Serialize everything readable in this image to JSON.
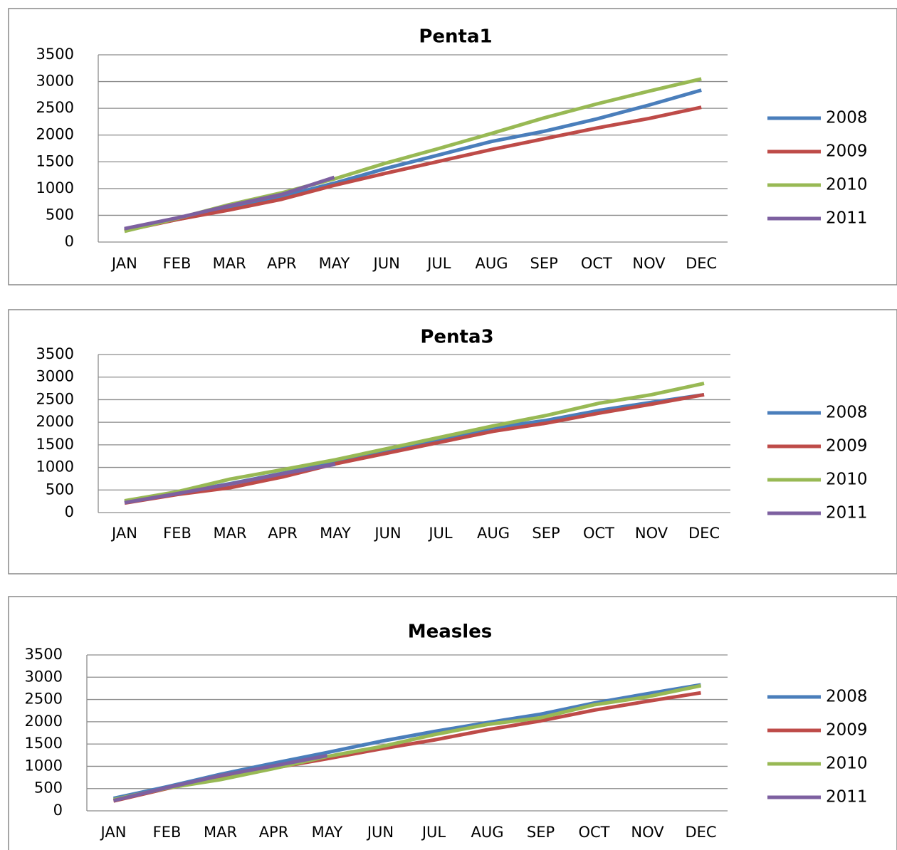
{
  "chart_data": [
    {
      "type": "line",
      "title": "Penta1",
      "categories": [
        "JAN",
        "FEB",
        "MAR",
        "APR",
        "MAY",
        "JUN",
        "JUL",
        "AUG",
        "SEP",
        "OCT",
        "NOV",
        "DEC"
      ],
      "ylim": [
        0,
        3500
      ],
      "yticks": [
        0,
        500,
        1000,
        1500,
        2000,
        2500,
        3000,
        3500
      ],
      "grid": true,
      "series": [
        {
          "name": "2008",
          "color": "#4a7ebb",
          "values": [
            230,
            420,
            620,
            850,
            1100,
            1380,
            1630,
            1880,
            2070,
            2300,
            2560,
            2840
          ]
        },
        {
          "name": "2009",
          "color": "#be4b48",
          "values": [
            210,
            420,
            600,
            800,
            1060,
            1290,
            1510,
            1730,
            1930,
            2130,
            2310,
            2520
          ]
        },
        {
          "name": "2010",
          "color": "#98b954",
          "values": [
            200,
            440,
            700,
            920,
            1180,
            1480,
            1750,
            2030,
            2320,
            2580,
            2820,
            3050
          ]
        },
        {
          "name": "2011",
          "color": "#7d60a0",
          "values": [
            250,
            450,
            680,
            890,
            1210,
            null,
            null,
            null,
            null,
            null,
            null,
            null
          ]
        }
      ]
    },
    {
      "type": "line",
      "title": "Penta3",
      "categories": [
        "JAN",
        "FEB",
        "MAR",
        "APR",
        "MAY",
        "JUN",
        "JUL",
        "AUG",
        "SEP",
        "OCT",
        "NOV",
        "DEC"
      ],
      "ylim": [
        0,
        3500
      ],
      "yticks": [
        0,
        500,
        1000,
        1500,
        2000,
        2500,
        3000,
        3500
      ],
      "grid": true,
      "series": [
        {
          "name": "2008",
          "color": "#4a7ebb",
          "values": [
            240,
            430,
            640,
            870,
            1110,
            1380,
            1620,
            1880,
            2040,
            2260,
            2440,
            2610
          ]
        },
        {
          "name": "2009",
          "color": "#be4b48",
          "values": [
            210,
            400,
            550,
            790,
            1080,
            1320,
            1560,
            1800,
            1980,
            2200,
            2400,
            2610
          ]
        },
        {
          "name": "2010",
          "color": "#98b954",
          "values": [
            260,
            460,
            740,
            950,
            1170,
            1420,
            1670,
            1920,
            2150,
            2420,
            2610,
            2860
          ]
        },
        {
          "name": "2011",
          "color": "#7d60a0",
          "values": [
            220,
            420,
            630,
            860,
            1070,
            null,
            null,
            null,
            null,
            null,
            null,
            null
          ]
        }
      ]
    },
    {
      "type": "line",
      "title": "Measles",
      "categories": [
        "JAN",
        "FEB",
        "MAR",
        "APR",
        "MAY",
        "JUN",
        "JUL",
        "AUG",
        "SEP",
        "OCT",
        "NOV",
        "DEC"
      ],
      "ylim": [
        0,
        3500
      ],
      "yticks": [
        0,
        500,
        1000,
        1500,
        2000,
        2500,
        3000,
        3500
      ],
      "grid": true,
      "series": [
        {
          "name": "2008",
          "color": "#4a7ebb",
          "values": [
            280,
            540,
            820,
            1070,
            1310,
            1560,
            1780,
            1980,
            2170,
            2420,
            2630,
            2830
          ]
        },
        {
          "name": "2009",
          "color": "#be4b48",
          "values": [
            220,
            500,
            740,
            960,
            1170,
            1390,
            1590,
            1820,
            2020,
            2260,
            2460,
            2650
          ]
        },
        {
          "name": "2010",
          "color": "#98b954",
          "values": [
            250,
            510,
            700,
            950,
            1220,
            1440,
            1710,
            1940,
            2090,
            2380,
            2560,
            2810
          ]
        },
        {
          "name": "2011",
          "color": "#7d60a0",
          "values": [
            230,
            520,
            790,
            1010,
            1240,
            null,
            null,
            null,
            null,
            null,
            null,
            null
          ]
        }
      ]
    }
  ]
}
